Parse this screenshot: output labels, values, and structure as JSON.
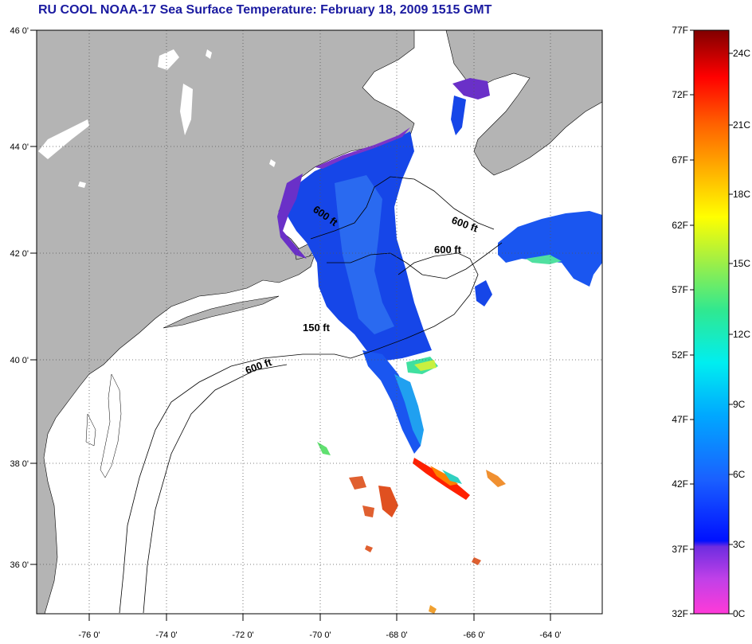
{
  "title": "RU COOL  NOAA-17  Sea Surface Temperature:  February 18, 2009 1515 GMT",
  "map": {
    "lon_labels": [
      "-76 0'",
      "-74 0'",
      "-72 0'",
      "-70 0'",
      "-68 0'",
      "-66 0'",
      "-64 0'"
    ],
    "lat_labels": [
      "46 0'",
      "44 0'",
      "42 0'",
      "40 0'",
      "38 0'",
      "36 0'"
    ],
    "depth_labels": [
      "600 ft",
      "600 ft",
      "600 ft",
      "150 ft",
      "600 ft"
    ]
  },
  "colorbar": {
    "fahrenheit": [
      "77F",
      "72F",
      "67F",
      "62F",
      "57F",
      "52F",
      "47F",
      "42F",
      "37F",
      "32F"
    ],
    "celsius": [
      "24C",
      "21C",
      "18C",
      "15C",
      "12C",
      "9C",
      "6C",
      "3C",
      "0C"
    ]
  },
  "colors": {
    "land": "#b4b4b4",
    "ocean": "#ffffff",
    "title": "#1a1aa0"
  }
}
